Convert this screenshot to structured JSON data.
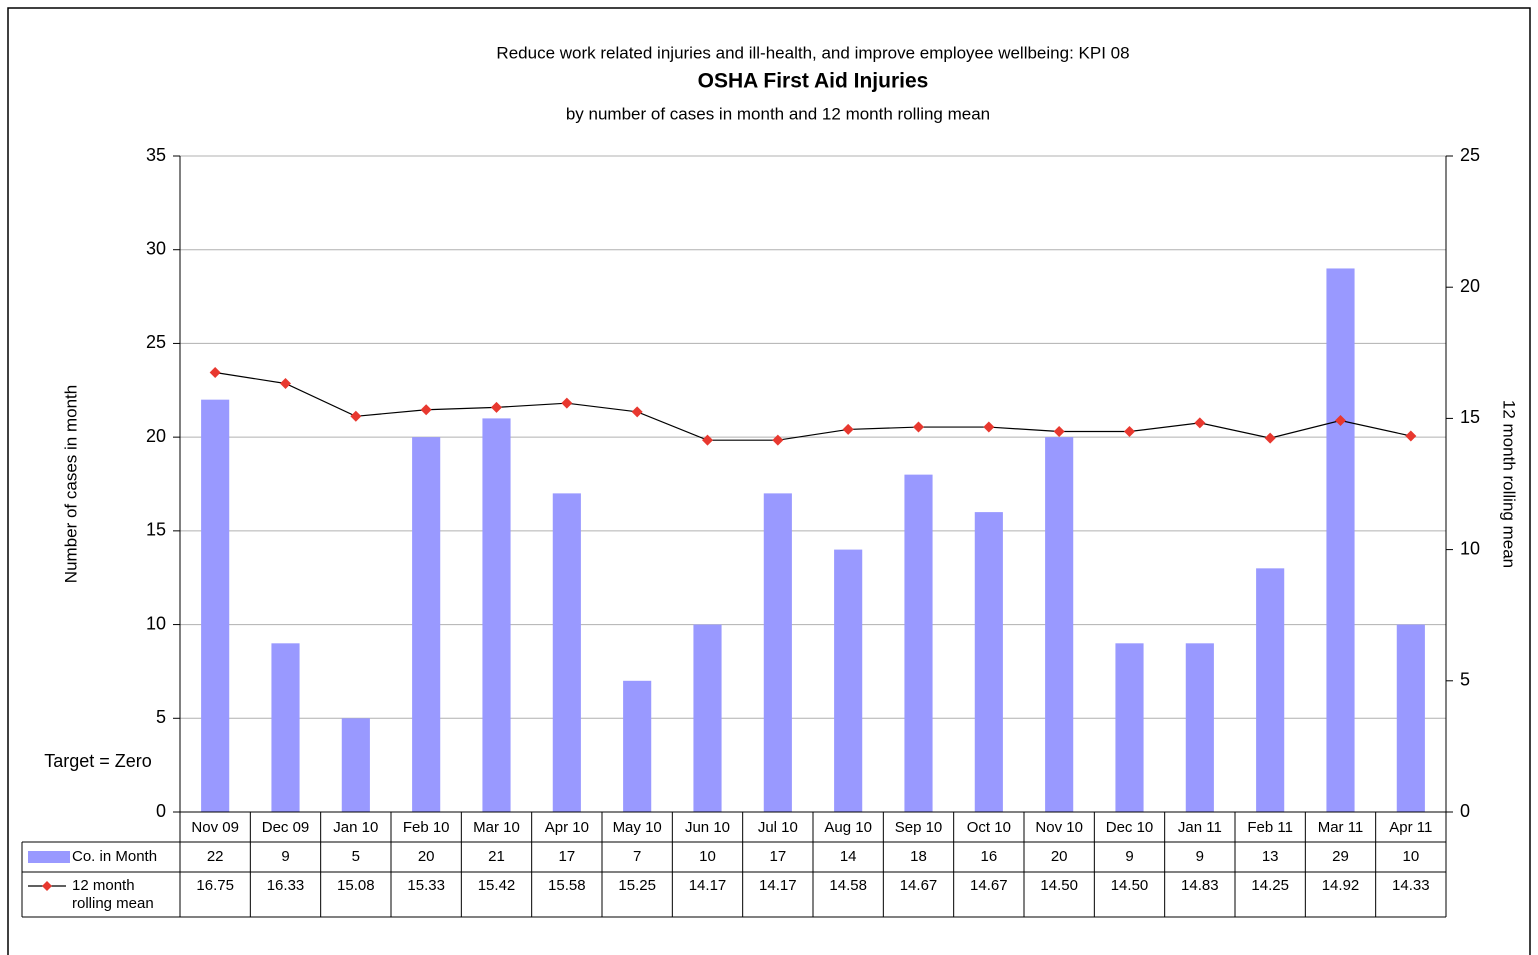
{
  "chart_data": {
    "type": "bar_line",
    "supertitle": "Reduce work related injuries and ill-health, and improve employee wellbeing: KPI 08",
    "title": "OSHA First Aid Injuries",
    "subtitle": "by number of cases in month and 12 month rolling mean",
    "y_label": "Number of cases in month",
    "y2_label": "12 month rolling mean",
    "annotation": "Target = Zero",
    "categories": [
      "Nov 09",
      "Dec 09",
      "Jan 10",
      "Feb 10",
      "Mar 10",
      "Apr 10",
      "May 10",
      "Jun 10",
      "Jul 10",
      "Aug 10",
      "Sep 10",
      "Oct 10",
      "Nov 10",
      "Dec 10",
      "Jan 11",
      "Feb 11",
      "Mar 11",
      "Apr 11"
    ],
    "series": [
      {
        "name": "Co. in Month",
        "type": "bar",
        "color": "#9999ff",
        "values": [
          22,
          9,
          5,
          20,
          21,
          17,
          7,
          10,
          17,
          14,
          18,
          16,
          20,
          9,
          9,
          13,
          29,
          10
        ]
      },
      {
        "name": "12 month rolling mean",
        "type": "line",
        "axis": "y2",
        "color": "#000000",
        "marker_color": "#e8382f",
        "values": [
          16.75,
          16.33,
          15.08,
          15.33,
          15.42,
          15.58,
          15.25,
          14.17,
          14.17,
          14.58,
          14.67,
          14.67,
          14.5,
          14.5,
          14.83,
          14.25,
          14.92,
          14.33
        ],
        "value_labels": [
          "16.75",
          "16.33",
          "15.08",
          "15.33",
          "15.42",
          "15.58",
          "15.25",
          "14.17",
          "14.17",
          "14.58",
          "14.67",
          "14.67",
          "14.50",
          "14.50",
          "14.83",
          "14.25",
          "14.92",
          "14.33"
        ]
      }
    ],
    "ylim": [
      0,
      35
    ],
    "yticks": [
      0,
      5,
      10,
      15,
      20,
      25,
      30,
      35
    ],
    "y2lim": [
      0,
      25
    ],
    "y2ticks": [
      0,
      5,
      10,
      15,
      20,
      25
    ],
    "grid": true
  }
}
